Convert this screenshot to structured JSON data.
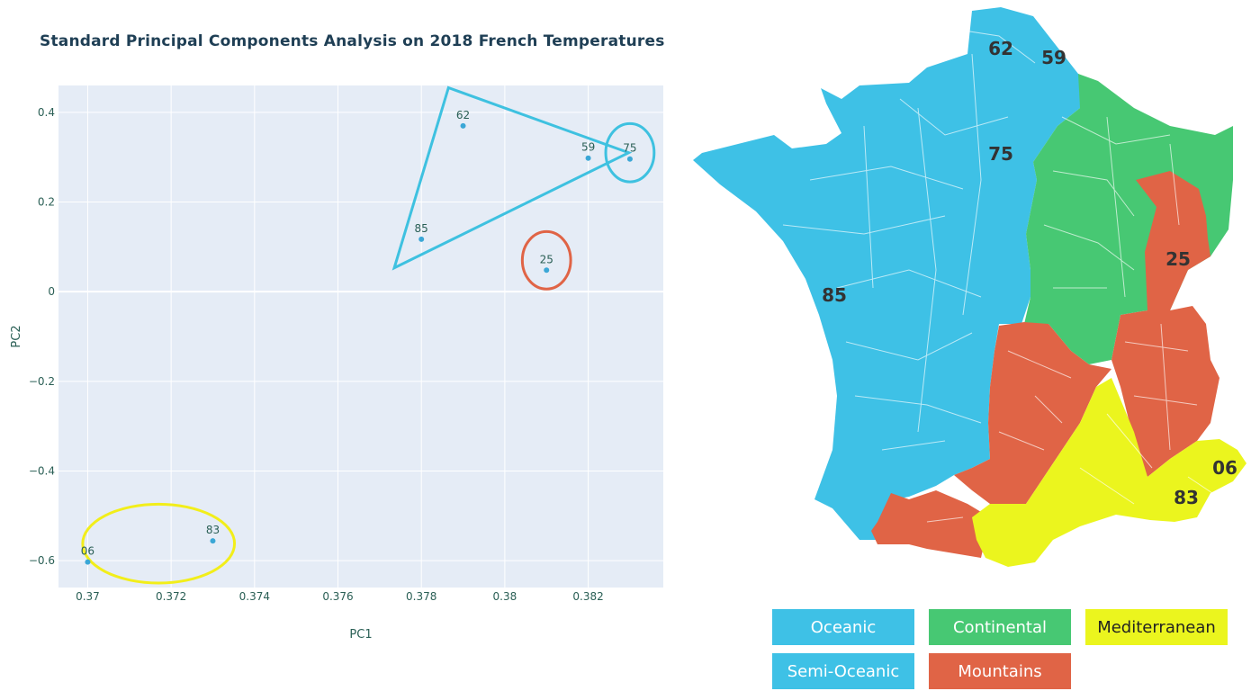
{
  "chart_data": {
    "type": "scatter",
    "title": "Standard Principal Components Analysis on 2018 French Temperatures",
    "xlabel": "PC1",
    "ylabel": "PC2",
    "xlim": [
      0.3693,
      0.3838
    ],
    "ylim": [
      -0.66,
      0.46
    ],
    "grid": true,
    "xticks": [
      {
        "v": 0.37,
        "label": "0.37"
      },
      {
        "v": 0.372,
        "label": "0.372"
      },
      {
        "v": 0.374,
        "label": "0.374"
      },
      {
        "v": 0.376,
        "label": "0.376"
      },
      {
        "v": 0.378,
        "label": "0.378"
      },
      {
        "v": 0.38,
        "label": "0.38"
      },
      {
        "v": 0.382,
        "label": "0.382"
      }
    ],
    "yticks": [
      {
        "v": 0.4,
        "label": "0.4"
      },
      {
        "v": 0.2,
        "label": "0.2"
      },
      {
        "v": 0,
        "label": "0"
      },
      {
        "v": -0.2,
        "label": "−0.2"
      },
      {
        "v": -0.4,
        "label": "−0.4"
      },
      {
        "v": -0.6,
        "label": "−0.6"
      }
    ],
    "points": [
      {
        "label": "62",
        "x": 0.379,
        "y": 0.37
      },
      {
        "label": "59",
        "x": 0.382,
        "y": 0.298
      },
      {
        "label": "75",
        "x": 0.383,
        "y": 0.296
      },
      {
        "label": "85",
        "x": 0.378,
        "y": 0.117
      },
      {
        "label": "25",
        "x": 0.381,
        "y": 0.048
      },
      {
        "label": "83",
        "x": 0.373,
        "y": -0.556
      },
      {
        "label": "06",
        "x": 0.37,
        "y": -0.603
      }
    ],
    "annotations": [
      {
        "shape": "triangle",
        "color": "#3ec1e0",
        "vertices": [
          [
            0.37865,
            0.455
          ],
          [
            0.38297,
            0.31
          ],
          [
            0.37735,
            0.053
          ]
        ]
      },
      {
        "shape": "ellipse",
        "color": "#3ec1e0",
        "center": [
          0.383,
          0.31
        ],
        "radii": [
          0.00058,
          0.065
        ]
      },
      {
        "shape": "ellipse",
        "color": "#e06446",
        "center": [
          0.381,
          0.07
        ],
        "radii": [
          0.00058,
          0.064
        ]
      },
      {
        "shape": "ellipse",
        "color": "#f2ee1a",
        "center": [
          0.3717,
          -0.562
        ],
        "radii": [
          0.00182,
          0.088
        ]
      }
    ]
  },
  "map": {
    "labels": [
      {
        "id": "62",
        "region": "Semi-Oceanic"
      },
      {
        "id": "59",
        "region": "Semi-Oceanic"
      },
      {
        "id": "75",
        "region": "Semi-Oceanic"
      },
      {
        "id": "85",
        "region": "Oceanic"
      },
      {
        "id": "25",
        "region": "Mountains"
      },
      {
        "id": "06",
        "region": "Mediterranean"
      },
      {
        "id": "83",
        "region": "Mediterranean"
      }
    ]
  },
  "legend": [
    {
      "label": "Oceanic",
      "color": "#3ec1e6",
      "text_color": "#ffffff"
    },
    {
      "label": "Continental",
      "color": "#47c873",
      "text_color": "#ffffff"
    },
    {
      "label": "Mediterranean",
      "color": "#ebf51e",
      "text_color": "#222222"
    },
    {
      "label": "Semi-Oceanic",
      "color": "#3ec1e6",
      "text_color": "#ffffff"
    },
    {
      "label": "Mountains",
      "color": "#e06446",
      "text_color": "#ffffff"
    }
  ],
  "colors": {
    "oceanic": "#3ec1e6",
    "continental": "#47c873",
    "mountains": "#e06446",
    "mediterranean": "#ebf51e",
    "plot_bg": "#e5ecf6",
    "marker": "#3ba7d6",
    "axis_text": "#2a5f55"
  }
}
